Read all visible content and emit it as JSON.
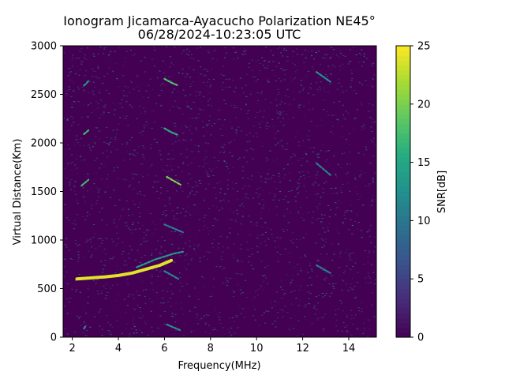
{
  "chart_data": {
    "type": "heatmap",
    "title_line1": "Ionogram Jicamarca-Ayacucho Polarization NE45°",
    "title_line2": "06/28/2024-10:23:05 UTC",
    "xlabel": "Frequency(MHz)",
    "ylabel": "Virtual Distance(Km)",
    "xlim": [
      1.6,
      15.2
    ],
    "ylim": [
      0,
      3000
    ],
    "xticks": [
      2,
      4,
      6,
      8,
      10,
      12,
      14
    ],
    "yticks": [
      0,
      500,
      1000,
      1500,
      2000,
      2500,
      3000
    ],
    "colorbar": {
      "label": "SNR[dB]",
      "range": [
        0,
        25
      ],
      "ticks": [
        0,
        5,
        10,
        15,
        20,
        25
      ],
      "colormap": "viridis"
    },
    "background_snr": 0,
    "traces": [
      {
        "x": [
          2.2,
          2.8,
          3.4,
          4.0,
          4.6,
          5.2,
          5.8,
          6.3
        ],
        "y": [
          600,
          610,
          620,
          635,
          660,
          700,
          740,
          790
        ],
        "snr": 24
      },
      {
        "x": [
          4.8,
          5.2,
          5.6,
          6.0,
          6.4,
          6.8
        ],
        "y": [
          720,
          760,
          800,
          830,
          860,
          880
        ],
        "snr": 14
      },
      {
        "x": [
          6.0,
          6.3,
          6.6
        ],
        "y": [
          680,
          640,
          600
        ],
        "snr": 12
      },
      {
        "x": [
          6.0,
          6.4,
          6.8
        ],
        "y": [
          1160,
          1120,
          1080
        ],
        "snr": 11
      },
      {
        "x": [
          6.1,
          6.4,
          6.7
        ],
        "y": [
          1650,
          1610,
          1570
        ],
        "snr": 20
      },
      {
        "x": [
          6.0,
          6.3,
          6.6
        ],
        "y": [
          2150,
          2110,
          2080
        ],
        "snr": 16
      },
      {
        "x": [
          6.0,
          6.3,
          6.6
        ],
        "y": [
          2660,
          2620,
          2590
        ],
        "snr": 18
      },
      {
        "x": [
          6.1,
          6.4,
          6.7
        ],
        "y": [
          130,
          100,
          70
        ],
        "snr": 13
      },
      {
        "x": [
          2.4,
          2.55,
          2.7
        ],
        "y": [
          1560,
          1590,
          1620
        ],
        "snr": 17
      },
      {
        "x": [
          2.5,
          2.6,
          2.7
        ],
        "y": [
          2090,
          2110,
          2130
        ],
        "snr": 17
      },
      {
        "x": [
          2.5,
          2.6,
          2.7
        ],
        "y": [
          2590,
          2610,
          2640
        ],
        "snr": 13
      },
      {
        "x": [
          2.5,
          2.6
        ],
        "y": [
          90,
          120
        ],
        "snr": 12
      },
      {
        "x": [
          12.6,
          12.9,
          13.2
        ],
        "y": [
          2730,
          2680,
          2630
        ],
        "snr": 13
      },
      {
        "x": [
          12.6,
          12.9,
          13.2
        ],
        "y": [
          1790,
          1730,
          1670
        ],
        "snr": 11
      },
      {
        "x": [
          12.6,
          12.9,
          13.2
        ],
        "y": [
          740,
          700,
          660
        ],
        "snr": 11
      }
    ]
  }
}
